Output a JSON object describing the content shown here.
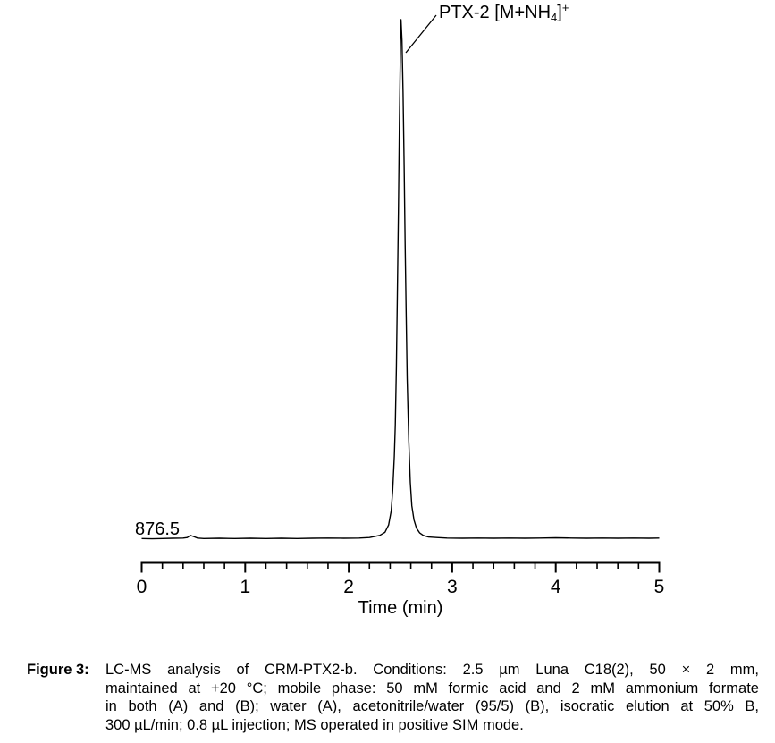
{
  "plot": {
    "peak_annotation": {
      "prefix": "PTX-2 [M+NH",
      "subscript": "4",
      "suffix": "]",
      "superscript": "+"
    },
    "mz_label": "876.5"
  },
  "chart_data": {
    "type": "line",
    "title": "",
    "xlabel": "Time (min)",
    "ylabel": "",
    "xlim": [
      0,
      5
    ],
    "ylim": [
      0,
      1.05
    ],
    "grid": false,
    "legend": false,
    "line_color": "#000000",
    "x_major_ticks": [
      0,
      1,
      2,
      3,
      4,
      5
    ],
    "x_minor_tick_step": 0.2,
    "annotations": [
      {
        "label": "PTX-2 [M+NH4]+",
        "x": 2.5,
        "y": 1.0
      },
      {
        "label": "876.5",
        "x": 0.0,
        "y": 0.02
      }
    ],
    "peaks": [
      {
        "label": "PTX-2 [M+NH4]+",
        "retention_time_min": 2.5,
        "relative_intensity": 1.0
      }
    ],
    "series": [
      {
        "name": "876.5",
        "points": [
          [
            0.0,
            0.002
          ],
          [
            0.1,
            0.0015
          ],
          [
            0.2,
            0.002
          ],
          [
            0.3,
            0.0025
          ],
          [
            0.4,
            0.003
          ],
          [
            0.44,
            0.004
          ],
          [
            0.47,
            0.008
          ],
          [
            0.5,
            0.006
          ],
          [
            0.54,
            0.003
          ],
          [
            0.6,
            0.002
          ],
          [
            0.75,
            0.0025
          ],
          [
            0.9,
            0.002
          ],
          [
            1.05,
            0.0025
          ],
          [
            1.2,
            0.002
          ],
          [
            1.35,
            0.0025
          ],
          [
            1.5,
            0.002
          ],
          [
            1.65,
            0.0025
          ],
          [
            1.8,
            0.003
          ],
          [
            1.95,
            0.0025
          ],
          [
            2.1,
            0.003
          ],
          [
            2.2,
            0.004
          ],
          [
            2.3,
            0.008
          ],
          [
            2.35,
            0.014
          ],
          [
            2.385,
            0.028
          ],
          [
            2.41,
            0.055
          ],
          [
            2.425,
            0.095
          ],
          [
            2.44,
            0.16
          ],
          [
            2.45,
            0.22
          ],
          [
            2.46,
            0.33
          ],
          [
            2.47,
            0.47
          ],
          [
            2.48,
            0.63
          ],
          [
            2.49,
            0.8
          ],
          [
            2.5,
            0.95
          ],
          [
            2.505,
            1.0
          ],
          [
            2.515,
            0.96
          ],
          [
            2.525,
            0.86
          ],
          [
            2.535,
            0.72
          ],
          [
            2.545,
            0.57
          ],
          [
            2.555,
            0.43
          ],
          [
            2.565,
            0.31
          ],
          [
            2.58,
            0.19
          ],
          [
            2.595,
            0.11
          ],
          [
            2.61,
            0.065
          ],
          [
            2.63,
            0.038
          ],
          [
            2.655,
            0.022
          ],
          [
            2.685,
            0.013
          ],
          [
            2.72,
            0.008
          ],
          [
            2.77,
            0.005
          ],
          [
            2.85,
            0.004
          ],
          [
            2.95,
            0.003
          ],
          [
            3.1,
            0.0025
          ],
          [
            3.25,
            0.003
          ],
          [
            3.4,
            0.0025
          ],
          [
            3.55,
            0.003
          ],
          [
            3.7,
            0.0025
          ],
          [
            3.85,
            0.003
          ],
          [
            4.0,
            0.0035
          ],
          [
            4.15,
            0.003
          ],
          [
            4.3,
            0.0025
          ],
          [
            4.45,
            0.003
          ],
          [
            4.6,
            0.0025
          ],
          [
            4.75,
            0.003
          ],
          [
            4.9,
            0.0025
          ],
          [
            5.0,
            0.003
          ]
        ]
      }
    ]
  },
  "caption": {
    "label": "Figure 3:",
    "lines": [
      "LC-MS analysis of CRM-PTX2-b. Conditions: 2.5 µm Luna C18(2), 50 × 2 mm,",
      "maintained at +20 °C; mobile phase: 50 mM formic acid and 2 mM ammonium formate",
      "in both (A) and (B); water (A), acetonitrile/water (95/5) (B), isocratic elution at 50% B,",
      "300 µL/min; 0.8 µL injection; MS operated in positive SIM mode."
    ],
    "full_text": "LC-MS analysis of CRM-PTX2-b. Conditions: 2.5 µm Luna C18(2), 50 × 2 mm, maintained at +20 °C; mobile phase: 50 mM formic acid and 2 mM ammonium formate in both (A) and (B); water (A), acetonitrile/water (95/5) (B), isocratic elution at 50% B, 300 µL/min; 0.8 µL injection; MS operated in positive SIM mode."
  },
  "colors": {
    "background": "#ffffff",
    "line": "#000000",
    "text": "#000000"
  }
}
